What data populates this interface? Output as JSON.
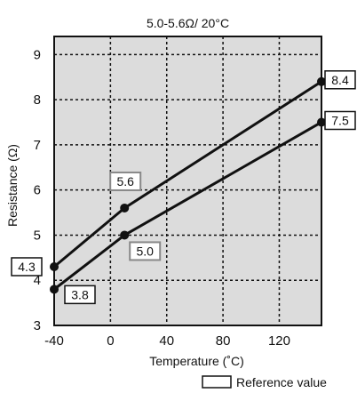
{
  "chart_data": {
    "type": "line",
    "title": "5.0-5.6Ω/ 20°C",
    "xlabel": "Temperature (˚C)",
    "ylabel": "Resistance (Ω)",
    "xlim": [
      -40,
      150
    ],
    "ylim": [
      3,
      9.4
    ],
    "x_ticks": [
      -40,
      0,
      40,
      80,
      120
    ],
    "y_ticks": [
      3,
      4,
      5,
      6,
      7,
      8,
      9
    ],
    "grid": true,
    "series": [
      {
        "x": [
          -40,
          10,
          150
        ],
        "values": [
          4.3,
          5.6,
          8.4
        ],
        "labels": [
          "4.3",
          "5.6",
          "8.4"
        ],
        "label_reference": [
          false,
          true,
          false
        ]
      },
      {
        "x": [
          -40,
          10,
          150
        ],
        "values": [
          3.8,
          5.0,
          7.5
        ],
        "labels": [
          "3.8",
          "5.0",
          "7.5"
        ],
        "label_reference": [
          false,
          true,
          false
        ]
      }
    ],
    "legend": {
      "label": "Reference value",
      "placement": "bottom-right"
    }
  }
}
